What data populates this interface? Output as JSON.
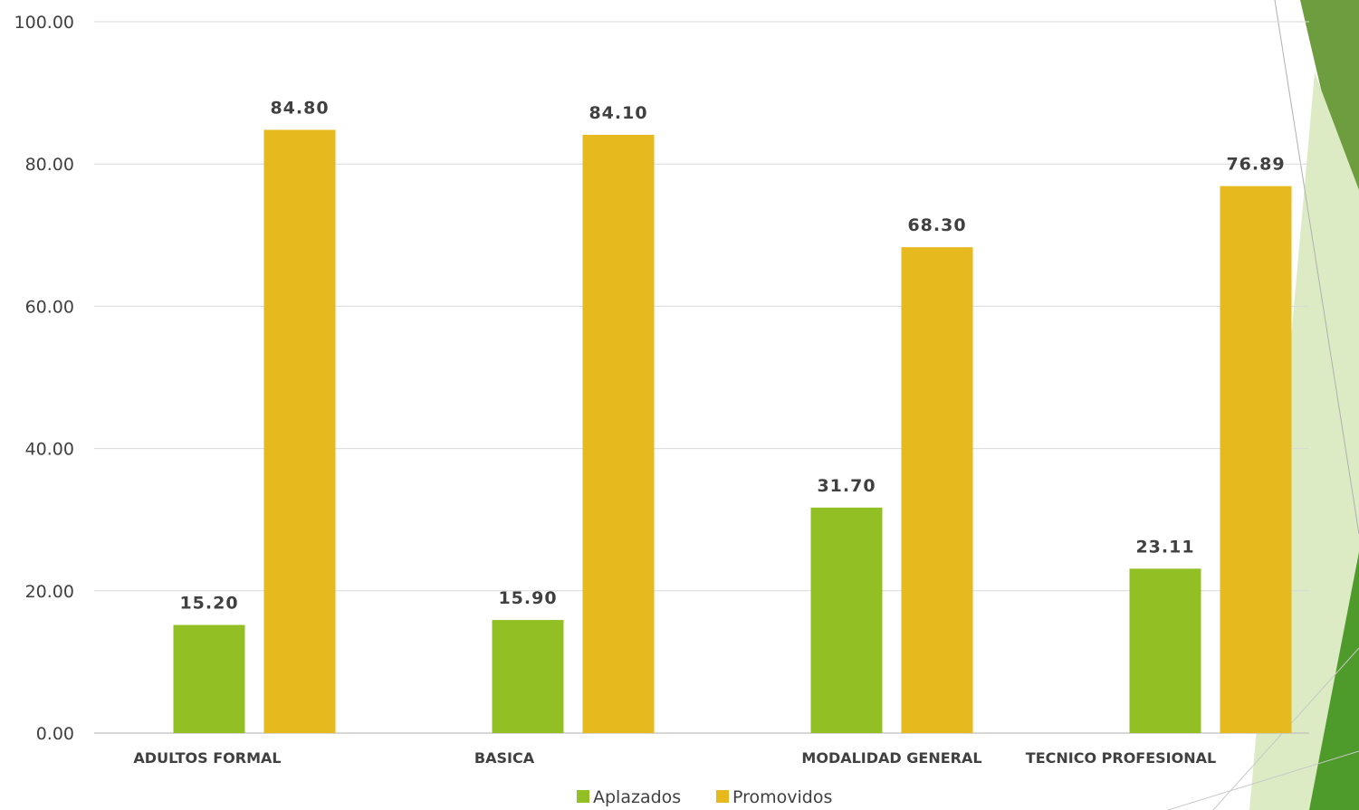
{
  "chart_data": {
    "type": "bar",
    "title": "",
    "xlabel": "",
    "ylabel": "",
    "categories": [
      "ADULTOS FORMAL",
      "BASICA",
      "MODALIDAD GENERAL",
      "TECNICO PROFESIONAL"
    ],
    "series": [
      {
        "name": "Aplazados",
        "values": [
          15.2,
          15.9,
          31.7,
          23.11
        ],
        "color": "#92C024"
      },
      {
        "name": "Promovidos",
        "values": [
          84.8,
          84.1,
          68.3,
          76.89
        ],
        "color": "#E6B91E"
      }
    ],
    "ylim": [
      0,
      100
    ],
    "yticks": [
      "0.00",
      "20.00",
      "40.00",
      "60.00",
      "80.00",
      "100.00"
    ],
    "data_labels": [
      [
        "15.20",
        "15.90",
        "31.70",
        "23.11"
      ],
      [
        "84.80",
        "84.10",
        "68.30",
        "76.89"
      ]
    ],
    "grid": true,
    "legend_position": "bottom",
    "decoration_colors": [
      "#6E9D3F",
      "#DCEBC4",
      "#4E9A2A"
    ]
  }
}
